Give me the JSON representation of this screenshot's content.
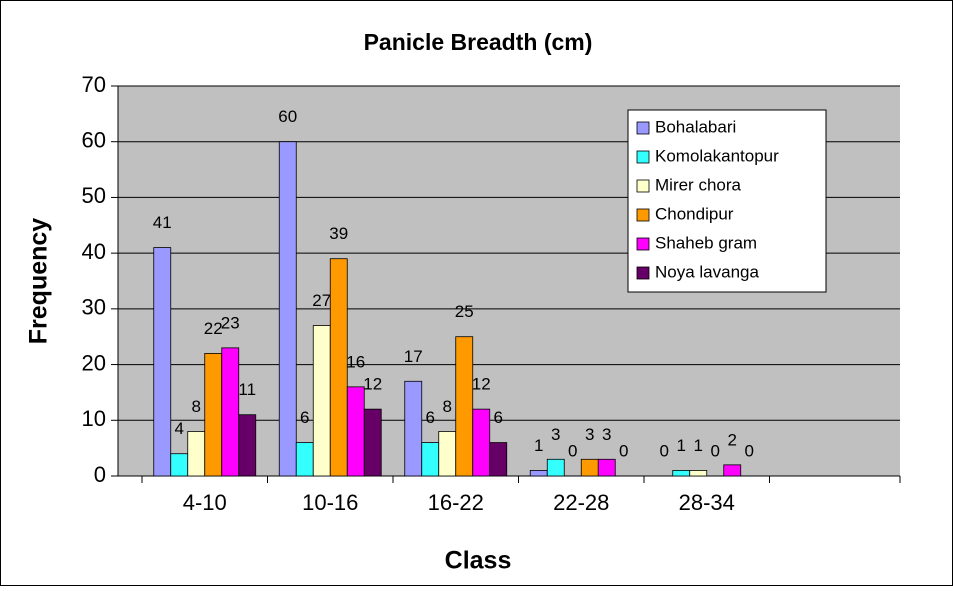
{
  "chart_data": {
    "type": "bar",
    "title": "Panicle Breadth (cm)",
    "x_label": "Class",
    "y_label": "Frequency",
    "categories": [
      "4-10",
      "10-16",
      "16-22",
      "22-28",
      "28-34",
      null
    ],
    "series": [
      {
        "name": "Bohalabari",
        "color": "#9999ff",
        "values": [
          41,
          60,
          17,
          1,
          0,
          null
        ]
      },
      {
        "name": "Komolakantopur",
        "color": "#33ffff",
        "values": [
          4,
          6,
          6,
          3,
          1,
          null
        ]
      },
      {
        "name": "Mirer chora",
        "color": "#ffffcc",
        "values": [
          8,
          27,
          8,
          0,
          1,
          null
        ]
      },
      {
        "name": "Chondipur",
        "color": "#ff9900",
        "values": [
          22,
          39,
          25,
          3,
          0,
          null
        ]
      },
      {
        "name": "Shaheb gram",
        "color": "#ff00ff",
        "values": [
          23,
          16,
          12,
          3,
          2,
          null
        ]
      },
      {
        "name": "Noya lavanga",
        "color": "#660066",
        "values": [
          11,
          12,
          6,
          0,
          0,
          null
        ]
      }
    ],
    "ylim": [
      0,
      70
    ],
    "yticks": [
      0,
      10,
      20,
      30,
      40,
      50,
      60,
      70
    ],
    "grid": true,
    "legend": "upper right"
  }
}
